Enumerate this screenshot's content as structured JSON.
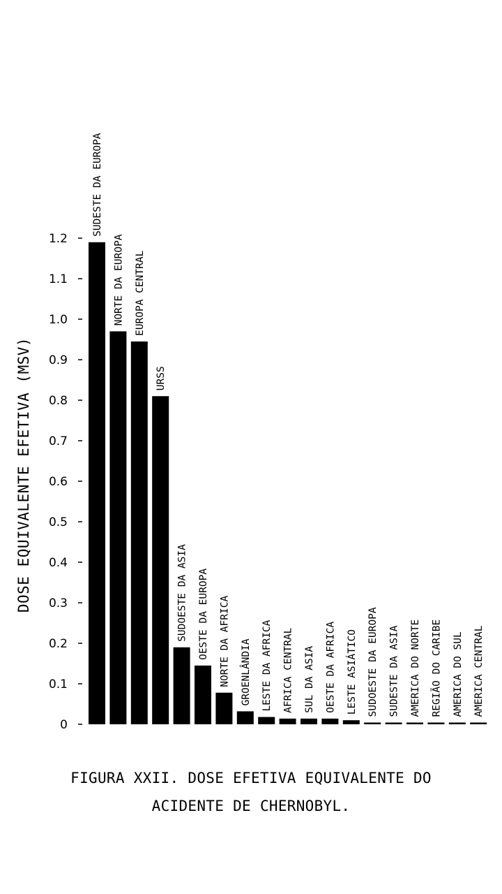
{
  "chart_data": {
    "type": "bar",
    "ylabel": "DOSE EQUIVALENTE EFETIVA (MSV)",
    "ylim": [
      0,
      1.2
    ],
    "yticks": [
      "0",
      "0.1",
      "0.2",
      "0.3",
      "0.4",
      "0.5",
      "0.6",
      "0.7",
      "0.8",
      "0.9",
      "1.0",
      "1.1",
      "1.2"
    ],
    "categories": [
      "SUDESTE DA EUROPA",
      "NORTE DA EUROPA",
      "EUROPA CENTRAL",
      "URSS",
      "SUDOESTE DA ASIA",
      "OESTE DA EUROPA",
      "NORTE DA AFRICA",
      "GROENLÂNDIA",
      "LESTE DA AFRICA",
      "AFRICA CENTRAL",
      "SUL DA ASIA",
      "OESTE DA AFRICA",
      "LESTE ASIÁTICO",
      "SUDOESTE DA EUROPA",
      "SUDESTE DA ASIA",
      "AMERICA DO NORTE",
      "REGIÃO DO CARIBE",
      "AMERICA DO SUL",
      "AMERICA CENTRAL"
    ],
    "values": [
      1.19,
      0.97,
      0.945,
      0.81,
      0.19,
      0.145,
      0.078,
      0.032,
      0.018,
      0.014,
      0.014,
      0.014,
      0.01,
      0.004,
      0.004,
      0.004,
      0.002,
      0.002,
      0.002
    ],
    "grid": false,
    "legend": "none"
  },
  "caption": {
    "line1": "FIGURA XXII. DOSE EFETIVA EQUIVALENTE DO",
    "line2": "ACIDENTE DE CHERNOBYL."
  }
}
